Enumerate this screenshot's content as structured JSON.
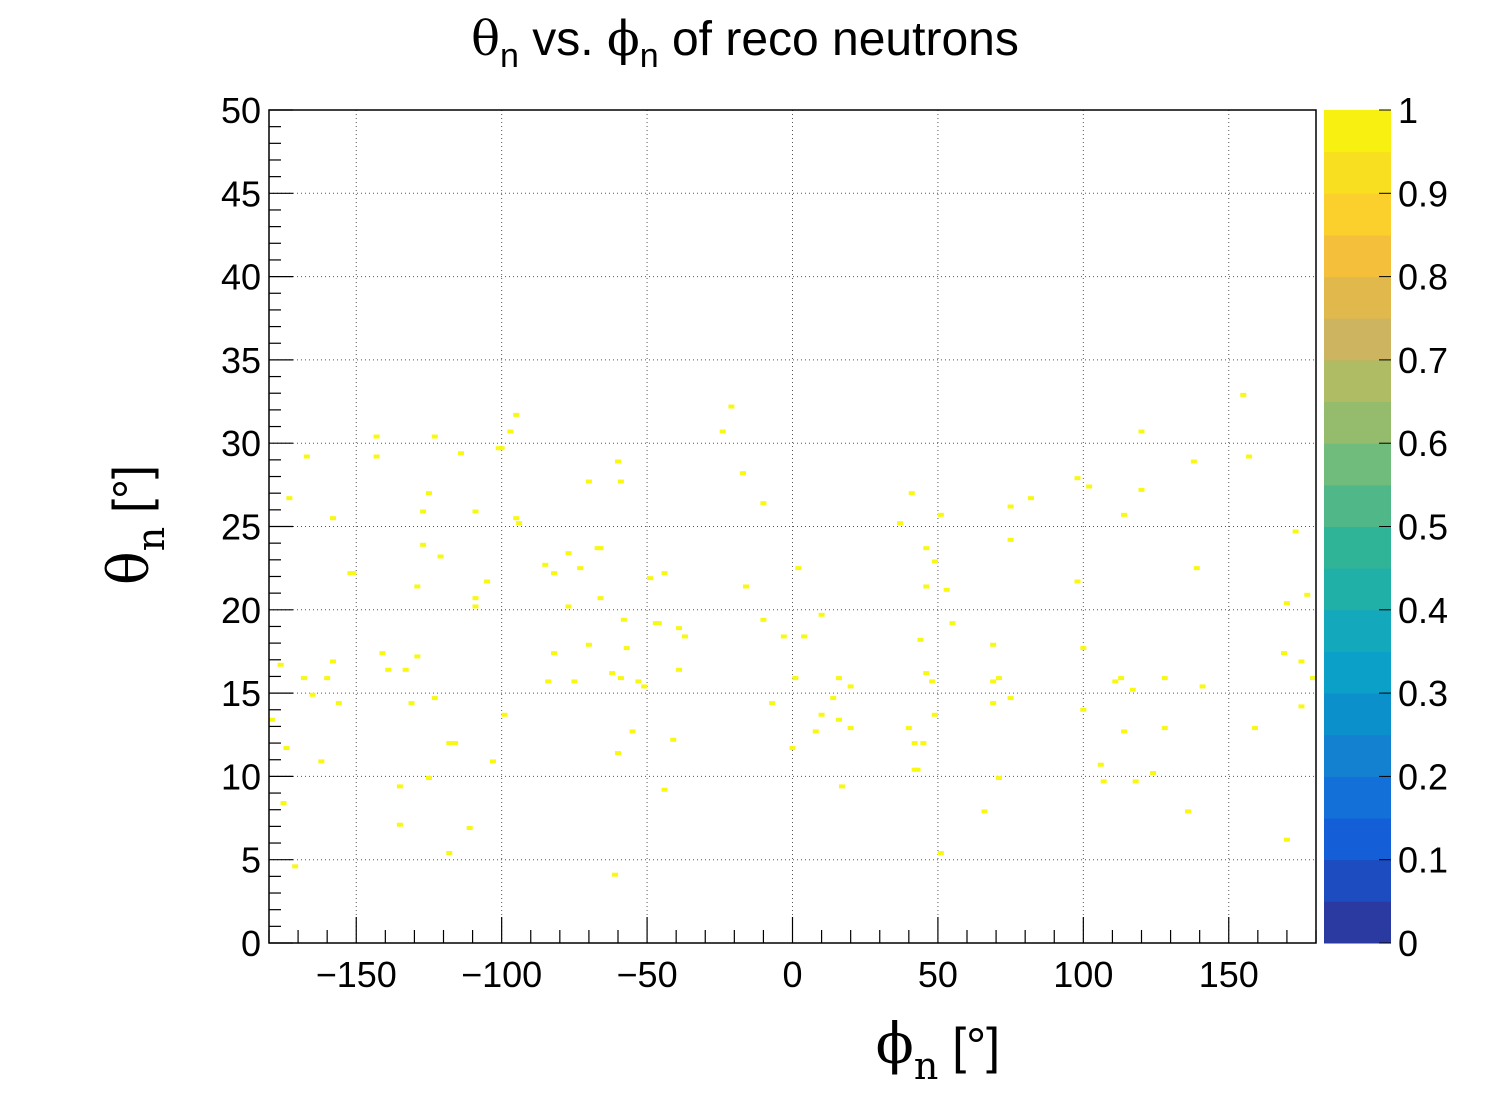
{
  "chart_data": {
    "type": "heatmap",
    "title": {
      "theta_symbol": "θ",
      "theta_sub": "n",
      "vs": " vs.   ",
      "phi_symbol": "ϕ",
      "phi_sub": "n",
      "rest": " of reco neutrons"
    },
    "xlabel": {
      "symbol": "ϕ",
      "sub": "n",
      "unit": " [°]"
    },
    "ylabel": {
      "symbol": "θ",
      "sub": "n",
      "unit": " [°]"
    },
    "xlim": [
      -180,
      180
    ],
    "ylim": [
      0,
      50
    ],
    "x_ticks": [
      -150,
      -100,
      -50,
      0,
      50,
      100,
      150
    ],
    "x_tick_labels": [
      "−150",
      "−100",
      "−50",
      "0",
      "50",
      "100",
      "150"
    ],
    "y_ticks": [
      0,
      5,
      10,
      15,
      20,
      25,
      30,
      35,
      40,
      45,
      50
    ],
    "y_tick_labels": [
      "0",
      "5",
      "10",
      "15",
      "20",
      "25",
      "30",
      "35",
      "40",
      "45",
      "50"
    ],
    "grid": true,
    "colorbar": {
      "range": [
        0,
        1
      ],
      "ticks": [
        0,
        0.1,
        0.2,
        0.3,
        0.4,
        0.5,
        0.6,
        0.7,
        0.8,
        0.9,
        1
      ],
      "tick_labels": [
        "0",
        "0.1",
        "0.2",
        "0.3",
        "0.4",
        "0.5",
        "0.6",
        "0.7",
        "0.8",
        "0.9",
        "1"
      ],
      "colors": [
        "#2a3aa0",
        "#1c4cc0",
        "#145ed8",
        "#1270d8",
        "#1480d0",
        "#0c90cc",
        "#0aa0c8",
        "#14a8bc",
        "#20b0a8",
        "#30b498",
        "#50b888",
        "#70bc7c",
        "#94bc6c",
        "#b0bc64",
        "#ccb460",
        "#e0b84c",
        "#f4c03c",
        "#fcd02c",
        "#f8e020",
        "#f8f010"
      ]
    },
    "cell_color": "#f8f810",
    "points": [
      [
        -179,
        13.4
      ],
      [
        -176,
        16.7
      ],
      [
        -175,
        8.4
      ],
      [
        -174,
        11.7
      ],
      [
        -173,
        26.7
      ],
      [
        -171,
        4.6
      ],
      [
        -168,
        15.9
      ],
      [
        -167,
        29.2
      ],
      [
        -165,
        14.9
      ],
      [
        -162,
        10.9
      ],
      [
        -160,
        15.9
      ],
      [
        -158,
        16.9
      ],
      [
        -158,
        25.5
      ],
      [
        -156,
        14.4
      ],
      [
        -152,
        22.2
      ],
      [
        -151,
        22.2
      ],
      [
        -143,
        30.4
      ],
      [
        -143,
        29.2
      ],
      [
        -141,
        17.4
      ],
      [
        -139,
        16.4
      ],
      [
        -135,
        7.1
      ],
      [
        -135,
        9.4
      ],
      [
        -133,
        16.4
      ],
      [
        -131,
        14.4
      ],
      [
        -129,
        21.4
      ],
      [
        -129,
        17.2
      ],
      [
        -127,
        23.9
      ],
      [
        -127,
        25.9
      ],
      [
        -125,
        27.0
      ],
      [
        -125,
        9.9
      ],
      [
        -123,
        30.4
      ],
      [
        -123,
        14.7
      ],
      [
        -121,
        23.2
      ],
      [
        -118,
        12.0
      ],
      [
        -118,
        5.4
      ],
      [
        -116,
        12.0
      ],
      [
        -114,
        29.4
      ],
      [
        -111,
        6.9
      ],
      [
        -109,
        20.7
      ],
      [
        -109,
        20.2
      ],
      [
        -109,
        25.9
      ],
      [
        -105,
        21.7
      ],
      [
        -103,
        10.9
      ],
      [
        -101,
        29.7
      ],
      [
        -100,
        29.7
      ],
      [
        -99,
        13.7
      ],
      [
        -97,
        30.7
      ],
      [
        -95,
        31.7
      ],
      [
        -95,
        25.5
      ],
      [
        -94,
        25.2
      ],
      [
        -85,
        22.7
      ],
      [
        -84,
        15.7
      ],
      [
        -82,
        17.4
      ],
      [
        -82,
        22.2
      ],
      [
        -77,
        20.2
      ],
      [
        -77,
        23.4
      ],
      [
        -75,
        15.7
      ],
      [
        -73,
        22.5
      ],
      [
        -70,
        17.9
      ],
      [
        -70,
        27.7
      ],
      [
        -67,
        23.7
      ],
      [
        -66,
        23.7
      ],
      [
        -66,
        20.7
      ],
      [
        -62,
        16.2
      ],
      [
        -61,
        4.1
      ],
      [
        -60,
        11.4
      ],
      [
        -60,
        28.9
      ],
      [
        -59,
        15.9
      ],
      [
        -59,
        27.7
      ],
      [
        -58,
        19.4
      ],
      [
        -57,
        17.7
      ],
      [
        -55,
        12.7
      ],
      [
        -53,
        15.7
      ],
      [
        -51,
        15.4
      ],
      [
        -49,
        21.9
      ],
      [
        -47,
        19.2
      ],
      [
        -46,
        19.2
      ],
      [
        -44,
        22.2
      ],
      [
        -44,
        9.2
      ],
      [
        -41,
        12.2
      ],
      [
        -39,
        16.4
      ],
      [
        -39,
        18.9
      ],
      [
        -37,
        18.4
      ],
      [
        -24,
        30.7
      ],
      [
        -21,
        32.2
      ],
      [
        -17,
        28.2
      ],
      [
        -16,
        21.4
      ],
      [
        -10,
        19.4
      ],
      [
        -10,
        26.4
      ],
      [
        -7,
        14.4
      ],
      [
        -3,
        18.4
      ],
      [
        0,
        11.7
      ],
      [
        1,
        15.9
      ],
      [
        2,
        22.5
      ],
      [
        4,
        18.4
      ],
      [
        8,
        12.7
      ],
      [
        10,
        13.7
      ],
      [
        10,
        19.7
      ],
      [
        14,
        14.7
      ],
      [
        16,
        15.9
      ],
      [
        16,
        13.4
      ],
      [
        17,
        9.4
      ],
      [
        20,
        15.4
      ],
      [
        20,
        12.9
      ],
      [
        37,
        25.2
      ],
      [
        40,
        12.9
      ],
      [
        41,
        27.0
      ],
      [
        42,
        12.0
      ],
      [
        42,
        10.4
      ],
      [
        43,
        10.4
      ],
      [
        44,
        18.2
      ],
      [
        45,
        12.0
      ],
      [
        46,
        16.2
      ],
      [
        46,
        23.7
      ],
      [
        46,
        21.4
      ],
      [
        48,
        15.7
      ],
      [
        49,
        13.7
      ],
      [
        49,
        22.9
      ],
      [
        51,
        25.7
      ],
      [
        51,
        5.4
      ],
      [
        53,
        21.2
      ],
      [
        55,
        19.2
      ],
      [
        66,
        7.9
      ],
      [
        69,
        17.9
      ],
      [
        69,
        15.7
      ],
      [
        69,
        14.4
      ],
      [
        71,
        15.9
      ],
      [
        71,
        9.9
      ],
      [
        75,
        26.2
      ],
      [
        75,
        24.2
      ],
      [
        75,
        14.7
      ],
      [
        82,
        26.7
      ],
      [
        98,
        27.9
      ],
      [
        98,
        21.7
      ],
      [
        100,
        17.7
      ],
      [
        100,
        14.0
      ],
      [
        102,
        27.4
      ],
      [
        106,
        10.7
      ],
      [
        107,
        9.7
      ],
      [
        111,
        15.7
      ],
      [
        113,
        15.9
      ],
      [
        114,
        12.7
      ],
      [
        114,
        25.7
      ],
      [
        117,
        15.2
      ],
      [
        118,
        9.7
      ],
      [
        120,
        30.7
      ],
      [
        120,
        27.2
      ],
      [
        124,
        10.2
      ],
      [
        128,
        15.9
      ],
      [
        128,
        12.9
      ],
      [
        136,
        7.9
      ],
      [
        138,
        28.9
      ],
      [
        139,
        22.5
      ],
      [
        141,
        15.4
      ],
      [
        155,
        32.9
      ],
      [
        157,
        29.2
      ],
      [
        159,
        12.9
      ],
      [
        169,
        17.4
      ],
      [
        170,
        20.4
      ],
      [
        170,
        6.2
      ],
      [
        173,
        24.7
      ],
      [
        175,
        16.9
      ],
      [
        175,
        14.2
      ],
      [
        177,
        20.9
      ],
      [
        179,
        15.9
      ]
    ]
  }
}
